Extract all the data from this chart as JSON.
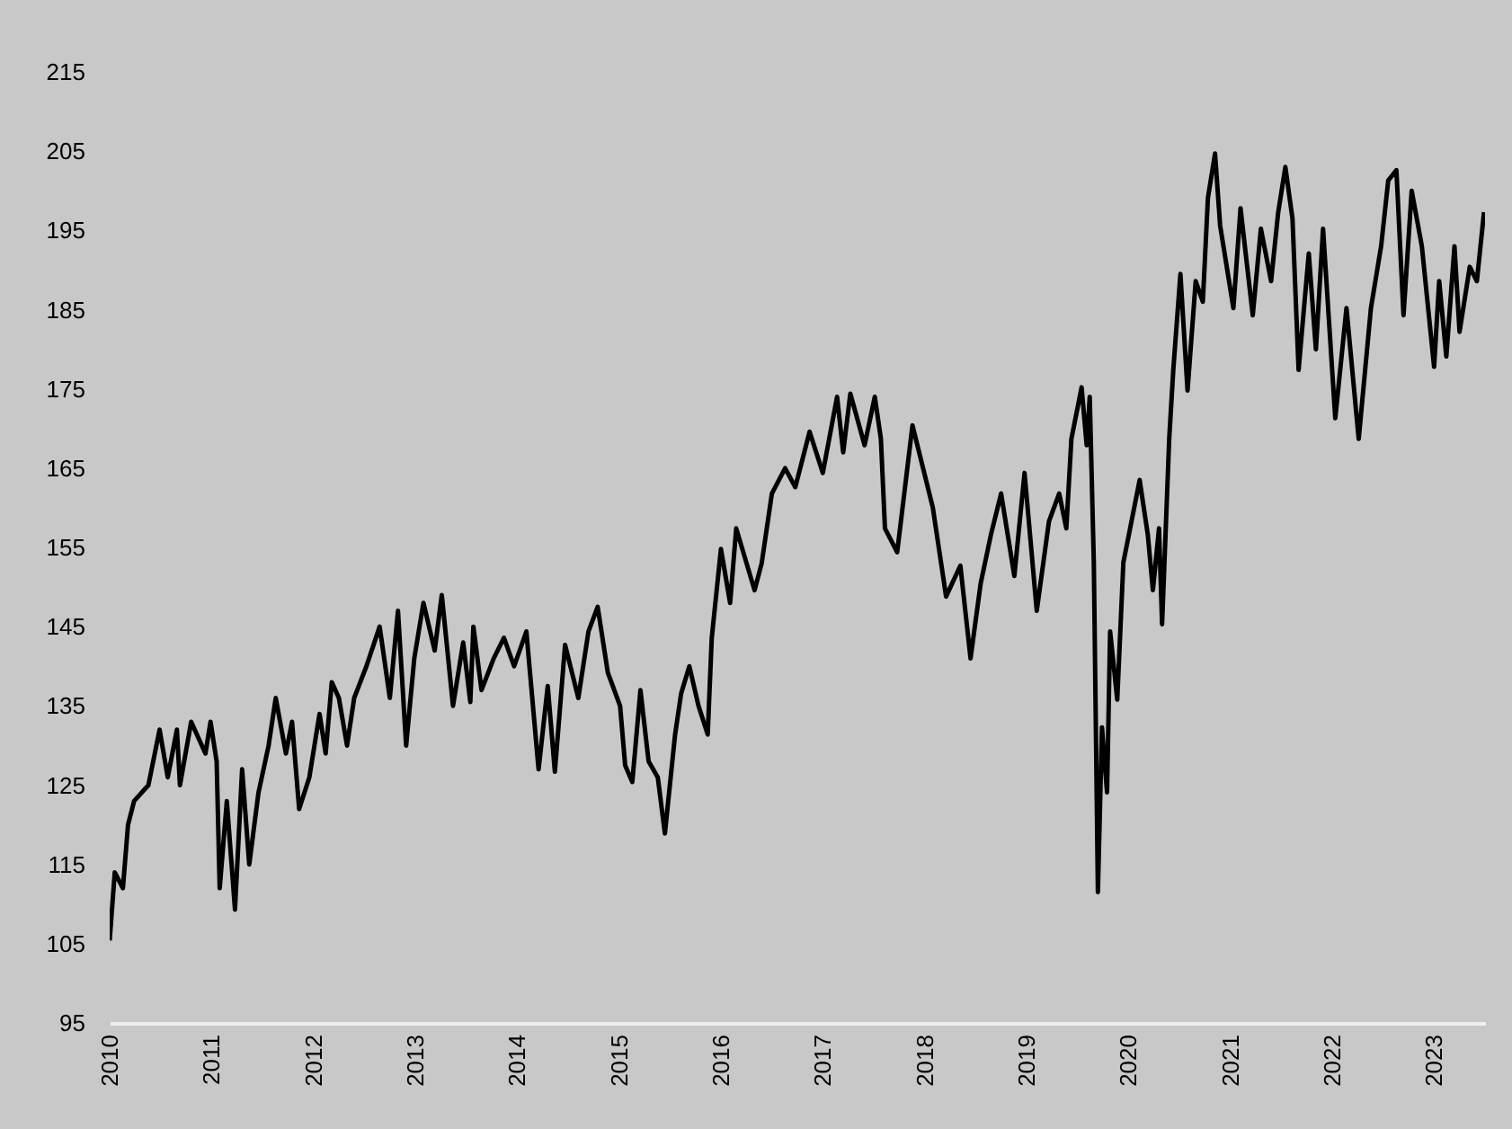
{
  "chart_data": {
    "type": "line",
    "xlim": [
      2010,
      2023.5
    ],
    "xticks": [
      2010,
      2011,
      2012,
      2013,
      2014,
      2015,
      2016,
      2017,
      2018,
      2019,
      2020,
      2021,
      2022,
      2023
    ],
    "ylim": [
      95,
      215
    ],
    "yticks": [
      95,
      105,
      115,
      125,
      135,
      145,
      155,
      165,
      175,
      185,
      195,
      205,
      215
    ],
    "grid": false,
    "legend": false,
    "marker": "none",
    "line_style": "solid",
    "series": [
      {
        "color": "#000000",
        "x": [
          2010.0,
          2010.05,
          2010.13,
          2010.18,
          2010.24,
          2010.38,
          2010.49,
          2010.57,
          2010.66,
          2010.69,
          2010.8,
          2010.94,
          2010.99,
          2011.05,
          2011.08,
          2011.15,
          2011.23,
          2011.3,
          2011.37,
          2011.46,
          2011.56,
          2011.63,
          2011.73,
          2011.79,
          2011.86,
          2011.96,
          2012.06,
          2012.12,
          2012.18,
          2012.25,
          2012.33,
          2012.4,
          2012.52,
          2012.65,
          2012.75,
          2012.83,
          2012.91,
          2012.99,
          2013.08,
          2013.19,
          2013.26,
          2013.37,
          2013.47,
          2013.54,
          2013.57,
          2013.65,
          2013.77,
          2013.87,
          2013.97,
          2014.09,
          2014.21,
          2014.3,
          2014.37,
          2014.47,
          2014.6,
          2014.7,
          2014.79,
          2014.89,
          2015.01,
          2015.06,
          2015.13,
          2015.21,
          2015.29,
          2015.38,
          2015.45,
          2015.55,
          2015.61,
          2015.69,
          2015.78,
          2015.87,
          2015.91,
          2016.0,
          2016.09,
          2016.15,
          2016.33,
          2016.4,
          2016.5,
          2016.63,
          2016.73,
          2016.87,
          2017.0,
          2017.14,
          2017.2,
          2017.27,
          2017.41,
          2017.51,
          2017.57,
          2017.61,
          2017.73,
          2017.88,
          2018.08,
          2018.21,
          2018.35,
          2018.45,
          2018.55,
          2018.65,
          2018.75,
          2018.88,
          2018.98,
          2019.1,
          2019.22,
          2019.32,
          2019.39,
          2019.44,
          2019.54,
          2019.59,
          2019.62,
          2019.66,
          2019.7,
          2019.74,
          2019.79,
          2019.82,
          2019.89,
          2019.95,
          2020.03,
          2020.11,
          2020.19,
          2020.24,
          2020.3,
          2020.33,
          2020.4,
          2020.44,
          2020.51,
          2020.58,
          2020.66,
          2020.73,
          2020.78,
          2020.85,
          2020.9,
          2021.03,
          2021.1,
          2021.22,
          2021.3,
          2021.4,
          2021.47,
          2021.54,
          2021.61,
          2021.67,
          2021.77,
          2021.84,
          2021.91,
          2022.03,
          2022.14,
          2022.26,
          2022.38,
          2022.48,
          2022.55,
          2022.63,
          2022.7,
          2022.78,
          2022.88,
          2023.0,
          2023.05,
          2023.12,
          2023.2,
          2023.25,
          2023.35,
          2023.42,
          2023.49
        ],
        "values": [
          105.4,
          114,
          112,
          120,
          123,
          125,
          132,
          126,
          132,
          125,
          133,
          129,
          133,
          128,
          112,
          123,
          109.3,
          127,
          115,
          124,
          130,
          136,
          129,
          133,
          122,
          126,
          134,
          129,
          138,
          136,
          130,
          136,
          140,
          145,
          136,
          147,
          130,
          141,
          148,
          142,
          149,
          135,
          143,
          135.5,
          145,
          137,
          141,
          143.6,
          140,
          144.4,
          127,
          137.5,
          126.7,
          142.7,
          136,
          144.4,
          147.5,
          139.2,
          135,
          127.5,
          125.4,
          137,
          128,
          126,
          118.9,
          131.4,
          136.6,
          140,
          135,
          131.4,
          143.6,
          154.8,
          148,
          157.4,
          149.6,
          153,
          161.8,
          165,
          162.6,
          169.6,
          164.4,
          174,
          167,
          174.4,
          167.9,
          174,
          168.7,
          157.4,
          154.4,
          170.4,
          160,
          148.8,
          152.7,
          141,
          150.5,
          156.6,
          161.8,
          151.4,
          164.4,
          147,
          158.3,
          161.8,
          157.4,
          168.7,
          175.2,
          167.9,
          174,
          153.1,
          111.5,
          132.3,
          124.1,
          144.4,
          135.8,
          153.1,
          158.3,
          163.5,
          156.6,
          149.6,
          157.4,
          145.3,
          168.7,
          177.4,
          189.5,
          174.8,
          188.6,
          186,
          199.1,
          204.7,
          195.6,
          185.2,
          197.8,
          184.3,
          195.2,
          188.6,
          197.3,
          203,
          196.5,
          177.4,
          192.1,
          180,
          195.2,
          171.3,
          185.2,
          168.7,
          185.2,
          193,
          201.3,
          202.6,
          184.3,
          200,
          193,
          177.8,
          188.6,
          179.1,
          193,
          182.2,
          190.4,
          188.6,
          197.3
        ]
      }
    ]
  }
}
